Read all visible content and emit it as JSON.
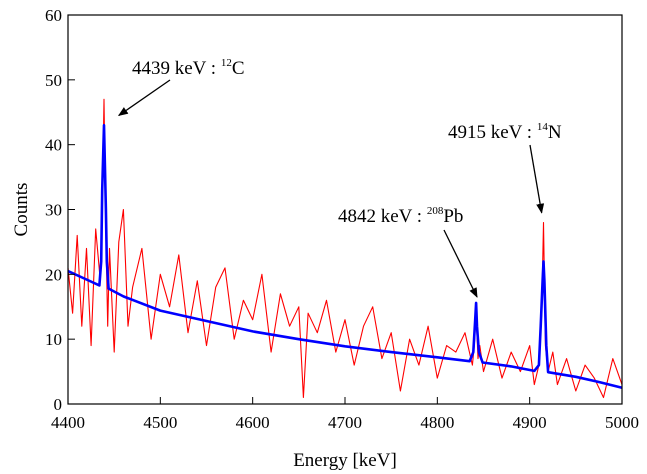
{
  "chart_data": {
    "type": "line",
    "xlabel": "Energy [keV]",
    "ylabel": "Counts",
    "xlim": [
      4400,
      5000
    ],
    "ylim": [
      0,
      60
    ],
    "xticks": [
      4400,
      4500,
      4600,
      4700,
      4800,
      4900,
      5000
    ],
    "yticks": [
      0,
      10,
      20,
      30,
      40,
      50,
      60
    ],
    "grid": false,
    "legend": "none",
    "series": [
      {
        "name": "",
        "color": "#ff0000",
        "kind": "measured spectrum (noisy)",
        "x": [
          4400,
          4405,
          4410,
          4415,
          4420,
          4425,
          4430,
          4435,
          4437,
          4439,
          4441,
          4443,
          4445,
          4450,
          4455,
          4460,
          4465,
          4470,
          4480,
          4490,
          4500,
          4510,
          4520,
          4530,
          4540,
          4550,
          4560,
          4570,
          4580,
          4590,
          4600,
          4610,
          4620,
          4630,
          4640,
          4650,
          4655,
          4660,
          4670,
          4680,
          4690,
          4700,
          4710,
          4720,
          4730,
          4740,
          4750,
          4760,
          4770,
          4780,
          4790,
          4800,
          4810,
          4820,
          4830,
          4838,
          4840,
          4842,
          4844,
          4846,
          4850,
          4860,
          4870,
          4880,
          4890,
          4900,
          4905,
          4910,
          4913,
          4915,
          4917,
          4920,
          4925,
          4930,
          4940,
          4950,
          4960,
          4970,
          4980,
          4990,
          5000
        ],
        "y": [
          21,
          14,
          26,
          12,
          24,
          9,
          27,
          19,
          30,
          47,
          26,
          12,
          24,
          8,
          25,
          30,
          12,
          18,
          24,
          10,
          20,
          15,
          23,
          11,
          19,
          9,
          18,
          21,
          10,
          16,
          13,
          20,
          8,
          17,
          12,
          15,
          1,
          14,
          11,
          16,
          8,
          13,
          6,
          12,
          15,
          7,
          11,
          2,
          10,
          6,
          12,
          4,
          9,
          8,
          11,
          6,
          9,
          14,
          7,
          9,
          5,
          10,
          4,
          8,
          5,
          9,
          3,
          6,
          14,
          28,
          9,
          5,
          8,
          3,
          7,
          2,
          6,
          4,
          1,
          7,
          3
        ]
      },
      {
        "name": "",
        "color": "#0000ff",
        "kind": "fit",
        "x": [
          4400,
          4420,
          4434,
          4436,
          4437,
          4439,
          4441,
          4442,
          4444,
          4460,
          4500,
          4550,
          4600,
          4650,
          4700,
          4750,
          4800,
          4835,
          4839,
          4841,
          4842,
          4843,
          4845,
          4849,
          4880,
          4905,
          4910,
          4912,
          4914,
          4915,
          4916,
          4918,
          4920,
          4950,
          4975,
          5000
        ],
        "y": [
          20.5,
          19.2,
          18.3,
          22,
          33,
          43,
          30,
          22,
          17.8,
          16.6,
          14.4,
          12.8,
          11.2,
          10,
          8.9,
          8,
          7.2,
          6.6,
          8,
          13,
          15.6,
          12,
          8,
          6.4,
          5.8,
          5.1,
          6,
          12,
          19,
          22,
          19,
          9,
          4.9,
          4.2,
          3.4,
          2.5
        ]
      }
    ],
    "annotations": [
      {
        "main": "4439 keV : ",
        "sup": "12",
        "tail": "C",
        "tip": [
          4455,
          44.5
        ]
      },
      {
        "main": "4842 keV : ",
        "sup": "208",
        "tail": "Pb",
        "tip": [
          4843,
          16.5
        ]
      },
      {
        "main": "4915 keV : ",
        "sup": "14",
        "tail": "N",
        "tip": [
          4913,
          29.5
        ]
      }
    ]
  }
}
